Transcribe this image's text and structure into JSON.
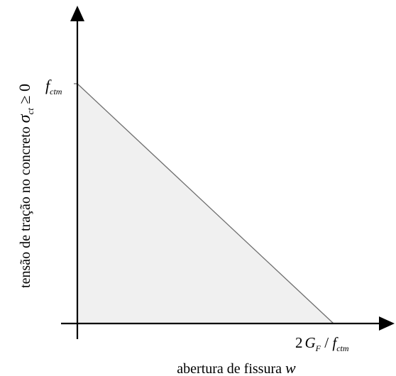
{
  "diagram": {
    "y_axis_label": {
      "text": "tensão de tração no concreto ",
      "symbol": "σ",
      "subscript": "ct",
      "relation": " ≥ 0"
    },
    "x_axis_label": {
      "text": "abertura de fissura ",
      "symbol": "w"
    },
    "y_tick": {
      "symbol": "f",
      "subscript": "ctm"
    },
    "x_tick": {
      "prefix": "2",
      "symbol_1": "G",
      "subscript_1": "F",
      "separator": " / ",
      "symbol_2": "f",
      "subscript_2": "ctm"
    },
    "colors": {
      "fill": "#f0f0f0",
      "line": "#6e6e6e",
      "axis": "#000000"
    }
  }
}
